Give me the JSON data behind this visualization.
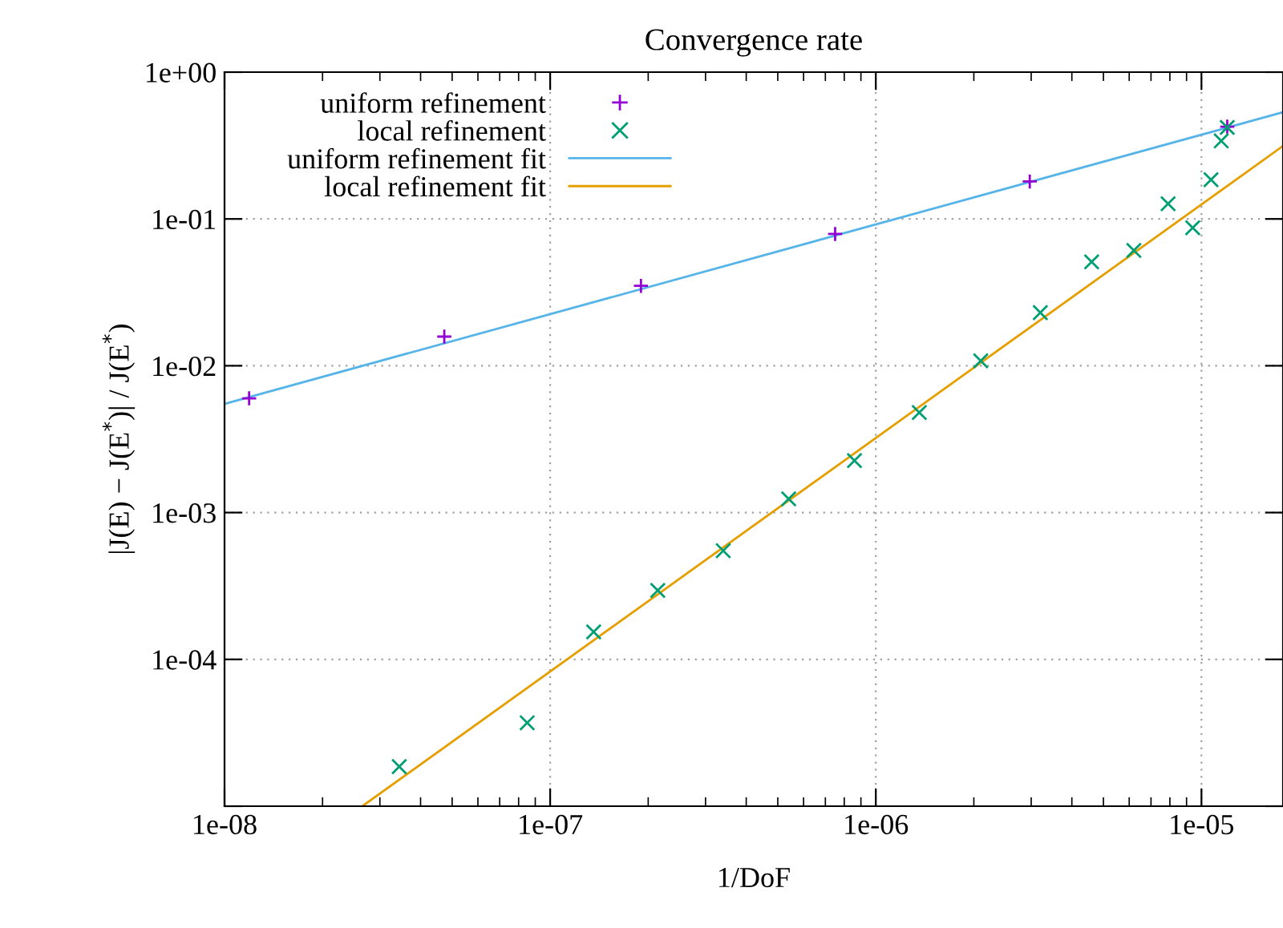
{
  "chart_data": {
    "type": "scatter",
    "title": "Convergence rate",
    "xlabel": "1/DoF",
    "ylabel": "|J(E) − J(E$^{*}$)| / J(E$^{*}$)",
    "log": "xy",
    "xlim": [
      1e-08,
      1.78e-05
    ],
    "ylim": [
      1e-05,
      1
    ],
    "xticks": [
      {
        "value": 1e-08,
        "label": "1e-08"
      },
      {
        "value": 1e-07,
        "label": "1e-07"
      },
      {
        "value": 1e-06,
        "label": "1e-06"
      },
      {
        "value": 1e-05,
        "label": "1e-05"
      }
    ],
    "yticks": [
      {
        "value": 1e-05,
        "label": null
      },
      {
        "value": 0.0001,
        "label": "1e-04"
      },
      {
        "value": 0.001,
        "label": "1e-03"
      },
      {
        "value": 0.01,
        "label": "1e-02"
      },
      {
        "value": 0.1,
        "label": "1e-01"
      },
      {
        "value": 1,
        "label": "1e+00"
      }
    ],
    "grid": true,
    "legend": "top left",
    "series": [
      {
        "name": "uniform refinement",
        "marker": "plus",
        "color": "#9400d3",
        "x": [
          1.19e-08,
          4.73e-08,
          1.9e-07,
          7.5e-07,
          2.97e-06,
          1.2e-05
        ],
        "values": [
          0.006,
          0.0158,
          0.035,
          0.079,
          0.18,
          0.425
        ]
      },
      {
        "name": "local refinement",
        "marker": "cross",
        "color": "#009e73",
        "x": [
          3.44e-08,
          8.5e-08,
          1.36e-07,
          2.14e-07,
          3.4e-07,
          5.4e-07,
          8.6e-07,
          1.36e-06,
          2.1e-06,
          3.2e-06,
          4.6e-06,
          6.2e-06,
          7.9e-06,
          9.4e-06,
          1.07e-05,
          1.15e-05,
          1.2e-05
        ],
        "values": [
          1.86e-05,
          3.7e-05,
          0.000154,
          0.000295,
          0.00055,
          0.00124,
          0.00226,
          0.0048,
          0.0108,
          0.023,
          0.051,
          0.061,
          0.127,
          0.087,
          0.185,
          0.34,
          0.42
        ]
      },
      {
        "name": "uniform refinement fit",
        "type": "line",
        "color": "#56b4e9",
        "x": [
          1e-08,
          1.78e-05
        ],
        "values": [
          0.0055,
          0.533
        ]
      },
      {
        "name": "local refinement fit",
        "type": "line",
        "color": "#e69f00",
        "x": [
          2.65e-08,
          1.78e-05
        ],
        "values": [
          1e-05,
          0.314
        ]
      }
    ]
  }
}
